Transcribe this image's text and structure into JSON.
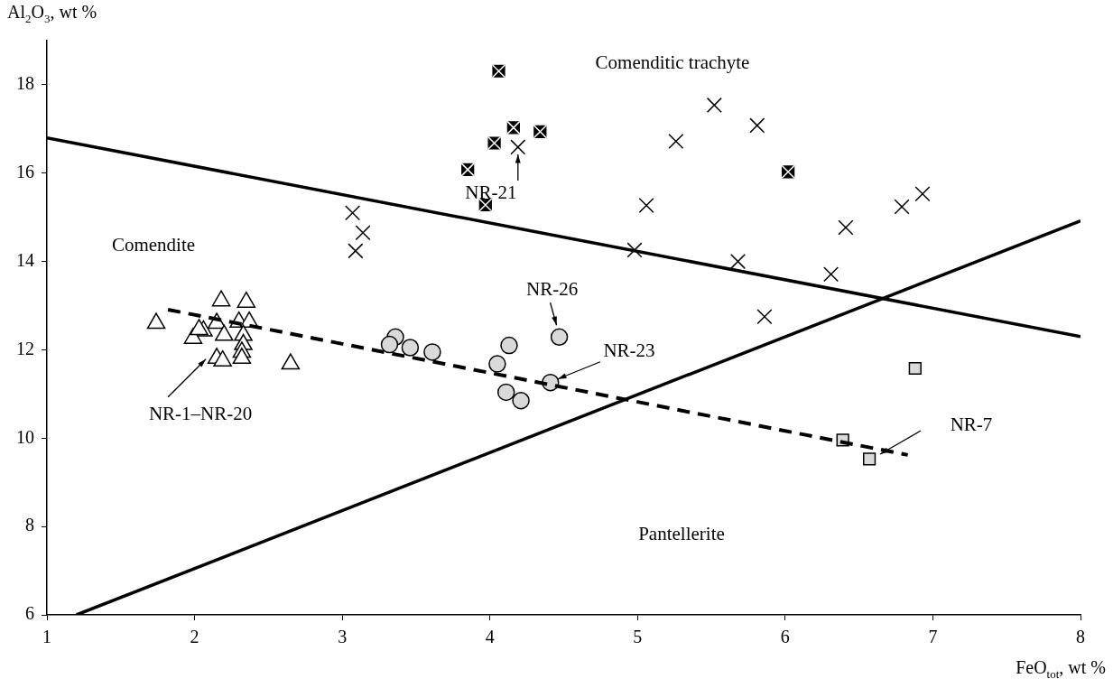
{
  "chart_data": {
    "type": "scatter",
    "xlabel": "FeO$_{tot}$, wt %",
    "ylabel": "Al$_{2}$O$_{3}$, wt %",
    "xlim": [
      1,
      8
    ],
    "xticks": [
      1,
      2,
      3,
      4,
      5,
      6,
      7,
      8
    ],
    "ylim": [
      6,
      19
    ],
    "yticks": [
      6,
      8,
      10,
      12,
      14,
      16,
      18
    ],
    "grid": false,
    "legend": false,
    "series": [
      {
        "type": "line",
        "color": "#000000",
        "line_style": "solid",
        "marker": "none",
        "x": [
          1,
          8
        ],
        "values": [
          16.8,
          12.3
        ]
      },
      {
        "type": "line",
        "color": "#000000",
        "line_style": "solid",
        "marker": "none",
        "x": [
          1.2,
          8
        ],
        "values": [
          6,
          14.92
        ]
      },
      {
        "type": "line",
        "color": "#000000",
        "line_style": "dashed",
        "marker": "none",
        "x": [
          1.82,
          6.83
        ],
        "values": [
          12.91,
          9.62
        ]
      },
      {
        "type": "scatter",
        "color": "#ffffff",
        "marker": "triangle",
        "x": [
          1.74,
          2.18,
          2.35,
          2.15,
          2.06,
          1.99,
          2.03,
          2.2,
          2.3,
          2.37,
          2.33,
          2.33,
          2.32,
          2.15,
          2.19,
          2.32,
          2.65
        ],
        "values": [
          12.6,
          13.11,
          13.08,
          12.6,
          12.43,
          12.26,
          12.46,
          12.33,
          12.63,
          12.63,
          12.33,
          12.12,
          11.95,
          11.81,
          11.75,
          11.81,
          11.68
        ]
      },
      {
        "type": "scatter",
        "color": "#d9d9d9",
        "marker": "circle",
        "x": [
          3.36,
          3.32,
          3.46,
          3.61,
          4.13,
          4.05,
          4.47,
          4.41,
          4.11,
          4.21
        ],
        "values": [
          12.29,
          12.12,
          12.05,
          11.95,
          12.1,
          11.68,
          12.29,
          11.26,
          11.04,
          10.85
        ]
      },
      {
        "type": "scatter",
        "color": "#000000",
        "marker": "square",
        "x": [
          4.06,
          4.16,
          4.34,
          4.03,
          3.85,
          3.97,
          6.02
        ],
        "values": [
          18.31,
          17.03,
          16.94,
          16.68,
          16.08,
          15.28,
          16.03
        ]
      },
      {
        "type": "scatter",
        "color": "#000000",
        "marker": "cross",
        "x": [
          4.19,
          5.52,
          5.26,
          5.06,
          4.98,
          5.81,
          5.68,
          6.31,
          6.41,
          6.79,
          6.93,
          5.86,
          3.07,
          3.14,
          3.09
        ],
        "values": [
          16.59,
          17.54,
          16.72,
          15.27,
          14.26,
          17.08,
          14.0,
          13.71,
          14.77,
          15.24,
          15.53,
          12.75,
          15.1,
          14.65,
          14.24
        ]
      },
      {
        "type": "scatter",
        "color": "#d9d9d9",
        "marker": "square",
        "x": [
          6.88,
          6.39,
          6.57
        ],
        "values": [
          11.58,
          9.96,
          9.53
        ]
      }
    ],
    "annotations": [
      "Comenditic trachyte",
      "Comendite",
      "Pantellerite",
      {
        "text": "NR-21",
        "x": 4.19,
        "y": 16.59
      },
      {
        "text": "NR-26",
        "x": 4.47,
        "y": 12.29
      },
      {
        "text": "NR-23",
        "x": 4.46,
        "y": 11.34
      },
      "NR-7",
      {
        "text": "NR-1–NR-20",
        "x": 2.15,
        "y": 11.81
      }
    ]
  }
}
